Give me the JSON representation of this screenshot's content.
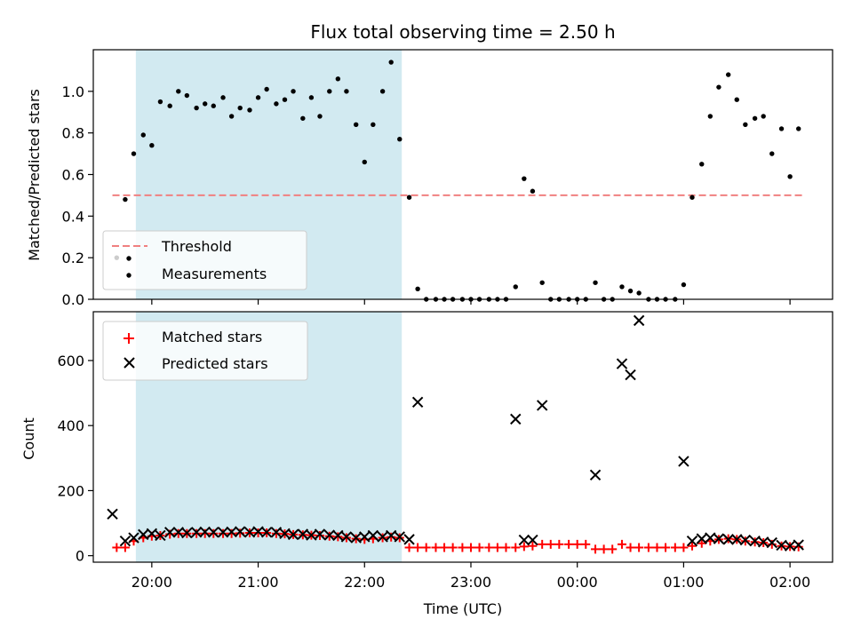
{
  "chart_data": {
    "title": "Flux total observing time = 2.50 h",
    "xlabel": "Time (UTC)",
    "x_ticks": [
      "20:00",
      "21:00",
      "22:00",
      "23:00",
      "00:00",
      "01:00",
      "02:00"
    ],
    "x_tick_hours": [
      20,
      21,
      22,
      23,
      24,
      25,
      26
    ],
    "xlim_hours": [
      19.45,
      26.4
    ],
    "highlight_span_hours": [
      19.85,
      22.35
    ],
    "highlight_color": "#add8e6",
    "panels": [
      {
        "type": "scatter",
        "ylabel": "Matched/Predicted stars",
        "ylim": [
          0,
          1.2
        ],
        "y_ticks": [
          "0.0",
          "0.2",
          "0.4",
          "0.6",
          "0.8",
          "1.0"
        ],
        "y_tick_values": [
          0,
          0.2,
          0.4,
          0.6,
          0.8,
          1.0
        ],
        "legend_location": "lower-left",
        "threshold": {
          "name": "Threshold",
          "value": 0.5,
          "x_range_hours": [
            19.63,
            26.12
          ],
          "color": "#f08080",
          "style": "dashed"
        },
        "series": [
          {
            "name": "Measurements",
            "marker": "dot",
            "color": "#000000",
            "points": [
              [
                19.67,
                0.2
              ],
              [
                19.75,
                0.48
              ],
              [
                19.83,
                0.7
              ],
              [
                19.92,
                0.79
              ],
              [
                20.0,
                0.74
              ],
              [
                20.08,
                0.95
              ],
              [
                20.17,
                0.93
              ],
              [
                20.25,
                1.0
              ],
              [
                20.33,
                0.98
              ],
              [
                20.42,
                0.92
              ],
              [
                20.5,
                0.94
              ],
              [
                20.58,
                0.93
              ],
              [
                20.67,
                0.97
              ],
              [
                20.75,
                0.88
              ],
              [
                20.83,
                0.92
              ],
              [
                20.92,
                0.91
              ],
              [
                21.0,
                0.97
              ],
              [
                21.08,
                1.01
              ],
              [
                21.17,
                0.94
              ],
              [
                21.25,
                0.96
              ],
              [
                21.33,
                1.0
              ],
              [
                21.42,
                0.87
              ],
              [
                21.5,
                0.97
              ],
              [
                21.58,
                0.88
              ],
              [
                21.67,
                1.0
              ],
              [
                21.75,
                1.06
              ],
              [
                21.83,
                1.0
              ],
              [
                21.92,
                0.84
              ],
              [
                22.0,
                0.66
              ],
              [
                22.08,
                0.84
              ],
              [
                22.17,
                1.0
              ],
              [
                22.25,
                1.14
              ],
              [
                22.33,
                0.77
              ],
              [
                22.42,
                0.49
              ],
              [
                22.5,
                0.05
              ],
              [
                22.58,
                0.0
              ],
              [
                22.67,
                0.0
              ],
              [
                22.75,
                0.0
              ],
              [
                22.83,
                0.0
              ],
              [
                22.92,
                0.0
              ],
              [
                23.0,
                0.0
              ],
              [
                23.08,
                0.0
              ],
              [
                23.17,
                0.0
              ],
              [
                23.25,
                0.0
              ],
              [
                23.33,
                0.0
              ],
              [
                23.42,
                0.06
              ],
              [
                23.5,
                0.58
              ],
              [
                23.58,
                0.52
              ],
              [
                23.67,
                0.08
              ],
              [
                23.75,
                0.0
              ],
              [
                23.83,
                0.0
              ],
              [
                23.92,
                0.0
              ],
              [
                24.0,
                0.0
              ],
              [
                24.08,
                0.0
              ],
              [
                24.17,
                0.08
              ],
              [
                24.25,
                0.0
              ],
              [
                24.33,
                0.0
              ],
              [
                24.42,
                0.06
              ],
              [
                24.5,
                0.04
              ],
              [
                24.58,
                0.03
              ],
              [
                24.67,
                0.0
              ],
              [
                24.75,
                0.0
              ],
              [
                24.83,
                0.0
              ],
              [
                24.92,
                0.0
              ],
              [
                25.0,
                0.07
              ],
              [
                25.08,
                0.49
              ],
              [
                25.17,
                0.65
              ],
              [
                25.25,
                0.88
              ],
              [
                25.33,
                1.02
              ],
              [
                25.42,
                1.08
              ],
              [
                25.5,
                0.96
              ],
              [
                25.58,
                0.84
              ],
              [
                25.67,
                0.87
              ],
              [
                25.75,
                0.88
              ],
              [
                25.83,
                0.7
              ],
              [
                25.92,
                0.82
              ],
              [
                26.0,
                0.59
              ],
              [
                26.08,
                0.82
              ]
            ]
          }
        ]
      },
      {
        "type": "scatter",
        "ylabel": "Count",
        "ylim": [
          -20,
          750
        ],
        "y_ticks": [
          "0",
          "200",
          "400",
          "600"
        ],
        "y_tick_values": [
          0,
          200,
          400,
          600
        ],
        "legend_location": "upper-left",
        "series": [
          {
            "name": "Matched stars",
            "marker": "plus",
            "color": "#ff0000",
            "points": [
              [
                19.67,
                25
              ],
              [
                19.75,
                25
              ],
              [
                19.83,
                45
              ],
              [
                19.92,
                55
              ],
              [
                20.0,
                60
              ],
              [
                20.08,
                62
              ],
              [
                20.17,
                66
              ],
              [
                20.25,
                68
              ],
              [
                20.33,
                68
              ],
              [
                20.42,
                68
              ],
              [
                20.5,
                68
              ],
              [
                20.58,
                68
              ],
              [
                20.67,
                68
              ],
              [
                20.75,
                68
              ],
              [
                20.83,
                69
              ],
              [
                20.92,
                70
              ],
              [
                21.0,
                70
              ],
              [
                21.08,
                70
              ],
              [
                21.17,
                68
              ],
              [
                21.25,
                67
              ],
              [
                21.33,
                65
              ],
              [
                21.42,
                64
              ],
              [
                21.5,
                63
              ],
              [
                21.58,
                62
              ],
              [
                21.67,
                60
              ],
              [
                21.75,
                58
              ],
              [
                21.83,
                55
              ],
              [
                21.92,
                52
              ],
              [
                22.0,
                50
              ],
              [
                22.08,
                52
              ],
              [
                22.17,
                55
              ],
              [
                22.25,
                57
              ],
              [
                22.33,
                55
              ],
              [
                22.42,
                25
              ],
              [
                22.5,
                25
              ],
              [
                22.58,
                25
              ],
              [
                22.67,
                25
              ],
              [
                22.75,
                25
              ],
              [
                22.83,
                25
              ],
              [
                22.92,
                25
              ],
              [
                23.0,
                25
              ],
              [
                23.08,
                25
              ],
              [
                23.17,
                25
              ],
              [
                23.25,
                25
              ],
              [
                23.33,
                25
              ],
              [
                23.42,
                25
              ],
              [
                23.5,
                28
              ],
              [
                23.58,
                30
              ],
              [
                23.67,
                35
              ],
              [
                23.75,
                35
              ],
              [
                23.83,
                35
              ],
              [
                23.92,
                35
              ],
              [
                24.0,
                35
              ],
              [
                24.08,
                35
              ],
              [
                24.17,
                20
              ],
              [
                24.25,
                20
              ],
              [
                24.33,
                20
              ],
              [
                24.42,
                35
              ],
              [
                24.5,
                25
              ],
              [
                24.58,
                25
              ],
              [
                24.67,
                25
              ],
              [
                24.75,
                25
              ],
              [
                24.83,
                25
              ],
              [
                24.92,
                25
              ],
              [
                25.0,
                25
              ],
              [
                25.08,
                30
              ],
              [
                25.17,
                38
              ],
              [
                25.25,
                45
              ],
              [
                25.33,
                50
              ],
              [
                25.42,
                52
              ],
              [
                25.5,
                50
              ],
              [
                25.58,
                45
              ],
              [
                25.67,
                42
              ],
              [
                25.75,
                40
              ],
              [
                25.83,
                35
              ],
              [
                25.92,
                30
              ],
              [
                26.0,
                28
              ],
              [
                26.08,
                27
              ]
            ]
          },
          {
            "name": "Predicted stars",
            "marker": "x",
            "color": "#000000",
            "points": [
              [
                19.63,
                128
              ],
              [
                19.75,
                45
              ],
              [
                19.83,
                55
              ],
              [
                19.92,
                65
              ],
              [
                20.0,
                68
              ],
              [
                20.08,
                62
              ],
              [
                20.17,
                72
              ],
              [
                20.25,
                72
              ],
              [
                20.33,
                70
              ],
              [
                20.42,
                72
              ],
              [
                20.5,
                73
              ],
              [
                20.58,
                72
              ],
              [
                20.67,
                72
              ],
              [
                20.75,
                73
              ],
              [
                20.83,
                74
              ],
              [
                20.92,
                72
              ],
              [
                21.0,
                74
              ],
              [
                21.08,
                72
              ],
              [
                21.17,
                72
              ],
              [
                21.25,
                68
              ],
              [
                21.33,
                65
              ],
              [
                21.42,
                66
              ],
              [
                21.5,
                63
              ],
              [
                21.58,
                66
              ],
              [
                21.67,
                63
              ],
              [
                21.75,
                62
              ],
              [
                21.83,
                58
              ],
              [
                21.92,
                55
              ],
              [
                22.0,
                58
              ],
              [
                22.08,
                62
              ],
              [
                22.17,
                58
              ],
              [
                22.25,
                62
              ],
              [
                22.33,
                58
              ],
              [
                22.42,
                50
              ],
              [
                22.5,
                472
              ],
              [
                23.42,
                420
              ],
              [
                23.5,
                48
              ],
              [
                23.58,
                48
              ],
              [
                23.67,
                462
              ],
              [
                24.17,
                248
              ],
              [
                24.42,
                590
              ],
              [
                24.5,
                556
              ],
              [
                24.58,
                723
              ],
              [
                25.0,
                290
              ],
              [
                25.08,
                45
              ],
              [
                25.17,
                52
              ],
              [
                25.25,
                55
              ],
              [
                25.33,
                52
              ],
              [
                25.42,
                50
              ],
              [
                25.5,
                50
              ],
              [
                25.58,
                48
              ],
              [
                25.67,
                45
              ],
              [
                25.75,
                42
              ],
              [
                25.83,
                40
              ],
              [
                25.92,
                32
              ],
              [
                26.0,
                30
              ],
              [
                26.08,
                33
              ]
            ]
          }
        ]
      }
    ]
  }
}
